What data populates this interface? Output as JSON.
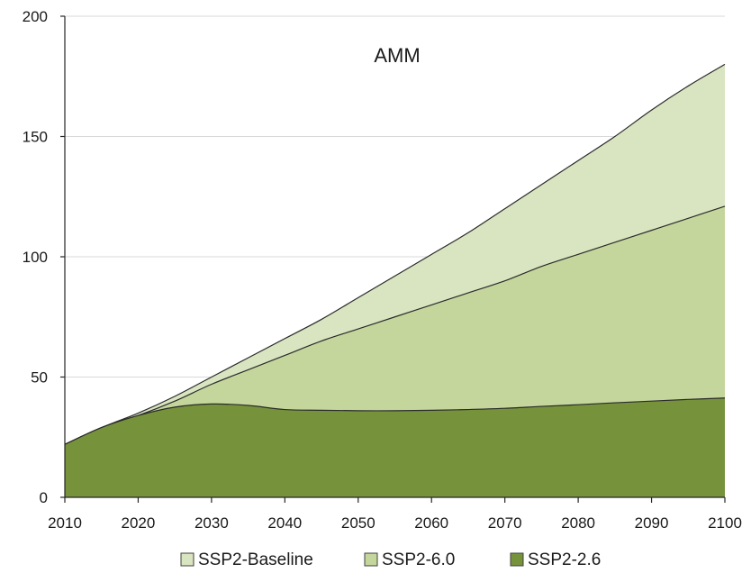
{
  "chart_data": {
    "type": "area",
    "title": "AMM",
    "xlabel": "",
    "ylabel": "",
    "x": [
      2010,
      2015,
      2020,
      2025,
      2030,
      2035,
      2040,
      2045,
      2050,
      2055,
      2060,
      2065,
      2070,
      2075,
      2080,
      2085,
      2090,
      2095,
      2100
    ],
    "xlim": [
      2010,
      2100
    ],
    "ylim": [
      0,
      200
    ],
    "x_ticks": [
      2010,
      2020,
      2030,
      2040,
      2050,
      2060,
      2070,
      2080,
      2090,
      2100
    ],
    "y_ticks": [
      0,
      50,
      100,
      150,
      200
    ],
    "grid": "horizontal",
    "legend_position": "bottom",
    "stacked": false,
    "series": [
      {
        "name": "SSP2-Baseline",
        "color": "#d9e5c1",
        "values": [
          22,
          29,
          35,
          42,
          50,
          58,
          66,
          74,
          83,
          92,
          101,
          110,
          120,
          130,
          140,
          150,
          161,
          171,
          180
        ]
      },
      {
        "name": "SSP2-6.0",
        "color": "#c4d69c",
        "values": [
          22,
          29,
          34,
          40,
          47,
          53,
          59,
          65,
          70,
          75,
          80,
          85,
          90,
          96,
          101,
          106,
          111,
          116,
          121
        ]
      },
      {
        "name": "SSP2-2.6",
        "color": "#76933c",
        "values": [
          22,
          29,
          34,
          37.5,
          38.8,
          38.2,
          36.5,
          36.2,
          36,
          36,
          36.2,
          36.5,
          37,
          37.8,
          38.5,
          39.3,
          40,
          40.7,
          41.3
        ]
      }
    ]
  }
}
